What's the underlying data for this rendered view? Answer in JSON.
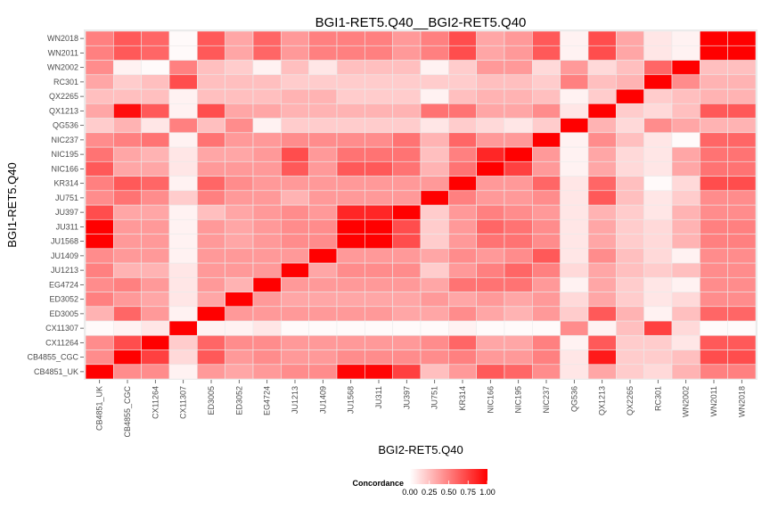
{
  "chart_data": {
    "type": "heatmap",
    "title": "BGI1-RET5.Q40__BGI2-RET5.Q40",
    "xlabel": "BGI2-RET5.Q40",
    "ylabel": "BGI1-RET5.Q40",
    "x_categories": [
      "CB4851_UK",
      "CB4855_CGC",
      "CX11264",
      "CX11307",
      "ED3005",
      "ED3052",
      "EG4724",
      "JU1213",
      "JU1409",
      "JU1568",
      "JU311",
      "JU397",
      "JU751",
      "KR314",
      "NIC166",
      "NIC195",
      "NIC237",
      "QG536",
      "QX1213",
      "QX2265",
      "RC301",
      "WN2002",
      "WN2011",
      "WN2018"
    ],
    "y_categories": [
      "CB4851_UK",
      "CB4855_CGC",
      "CX11264",
      "CX11307",
      "ED3005",
      "ED3052",
      "EG4724",
      "JU1213",
      "JU1409",
      "JU1568",
      "JU311",
      "JU397",
      "JU751",
      "KR314",
      "NIC166",
      "NIC195",
      "NIC237",
      "QG536",
      "QX1213",
      "QX2265",
      "RC301",
      "WN2002",
      "WN2011",
      "WN2018"
    ],
    "values": [
      [
        1.0,
        0.45,
        0.45,
        0.05,
        0.4,
        0.35,
        0.4,
        0.45,
        0.45,
        0.98,
        0.98,
        0.75,
        0.25,
        0.4,
        0.65,
        0.6,
        0.45,
        0.1,
        0.35,
        0.2,
        0.15,
        0.3,
        0.5,
        0.5
      ],
      [
        0.45,
        1.0,
        0.75,
        0.15,
        0.65,
        0.4,
        0.45,
        0.4,
        0.4,
        0.45,
        0.45,
        0.45,
        0.45,
        0.5,
        0.4,
        0.4,
        0.5,
        0.1,
        0.9,
        0.2,
        0.2,
        0.25,
        0.7,
        0.7
      ],
      [
        0.45,
        0.7,
        1.0,
        0.2,
        0.6,
        0.45,
        0.45,
        0.4,
        0.4,
        0.4,
        0.4,
        0.4,
        0.45,
        0.6,
        0.35,
        0.35,
        0.5,
        0.05,
        0.65,
        0.2,
        0.2,
        0.1,
        0.65,
        0.65
      ],
      [
        0.02,
        0.05,
        0.1,
        1.0,
        0.05,
        0.05,
        0.1,
        0.02,
        0.02,
        0.02,
        0.02,
        0.02,
        0.02,
        0.05,
        0.02,
        0.02,
        0.02,
        0.45,
        0.05,
        0.25,
        0.75,
        0.15,
        0.02,
        0.02
      ],
      [
        0.3,
        0.6,
        0.4,
        0.05,
        1.0,
        0.4,
        0.4,
        0.4,
        0.4,
        0.4,
        0.4,
        0.35,
        0.35,
        0.45,
        0.35,
        0.3,
        0.4,
        0.2,
        0.65,
        0.3,
        0.05,
        0.25,
        0.6,
        0.6
      ],
      [
        0.5,
        0.4,
        0.35,
        0.1,
        0.35,
        1.0,
        0.4,
        0.35,
        0.35,
        0.35,
        0.35,
        0.35,
        0.4,
        0.35,
        0.4,
        0.35,
        0.4,
        0.15,
        0.35,
        0.2,
        0.1,
        0.15,
        0.45,
        0.45
      ],
      [
        0.45,
        0.5,
        0.4,
        0.1,
        0.4,
        0.3,
        1.0,
        0.4,
        0.4,
        0.4,
        0.4,
        0.4,
        0.35,
        0.55,
        0.55,
        0.55,
        0.4,
        0.05,
        0.35,
        0.2,
        0.1,
        0.05,
        0.45,
        0.45
      ],
      [
        0.5,
        0.3,
        0.3,
        0.1,
        0.4,
        0.4,
        0.4,
        1.0,
        0.35,
        0.45,
        0.45,
        0.45,
        0.2,
        0.4,
        0.5,
        0.6,
        0.5,
        0.15,
        0.35,
        0.25,
        0.2,
        0.25,
        0.45,
        0.45
      ],
      [
        0.45,
        0.4,
        0.4,
        0.05,
        0.4,
        0.4,
        0.4,
        0.4,
        1.0,
        0.4,
        0.4,
        0.4,
        0.35,
        0.45,
        0.4,
        0.45,
        0.65,
        0.1,
        0.45,
        0.25,
        0.15,
        0.05,
        0.45,
        0.45
      ],
      [
        1.0,
        0.4,
        0.4,
        0.05,
        0.4,
        0.35,
        0.4,
        0.45,
        0.45,
        1.0,
        1.0,
        0.7,
        0.2,
        0.4,
        0.55,
        0.55,
        0.45,
        0.1,
        0.35,
        0.2,
        0.15,
        0.3,
        0.5,
        0.5
      ],
      [
        1.0,
        0.4,
        0.4,
        0.05,
        0.4,
        0.35,
        0.4,
        0.45,
        0.45,
        1.0,
        1.0,
        0.7,
        0.2,
        0.4,
        0.6,
        0.55,
        0.45,
        0.1,
        0.35,
        0.2,
        0.15,
        0.3,
        0.5,
        0.5
      ],
      [
        0.7,
        0.35,
        0.35,
        0.05,
        0.25,
        0.35,
        0.4,
        0.45,
        0.4,
        0.85,
        0.85,
        1.0,
        0.2,
        0.4,
        0.5,
        0.45,
        0.4,
        0.1,
        0.3,
        0.2,
        0.1,
        0.3,
        0.45,
        0.45
      ],
      [
        0.45,
        0.55,
        0.45,
        0.2,
        0.5,
        0.4,
        0.4,
        0.3,
        0.4,
        0.4,
        0.4,
        0.4,
        1.0,
        0.5,
        0.4,
        0.4,
        0.45,
        0.1,
        0.65,
        0.25,
        0.1,
        0.2,
        0.45,
        0.45
      ],
      [
        0.5,
        0.65,
        0.6,
        0.05,
        0.6,
        0.45,
        0.4,
        0.4,
        0.4,
        0.4,
        0.4,
        0.4,
        0.4,
        1.0,
        0.4,
        0.4,
        0.6,
        0.1,
        0.6,
        0.25,
        0.02,
        0.15,
        0.7,
        0.7
      ],
      [
        0.65,
        0.35,
        0.35,
        0.1,
        0.4,
        0.4,
        0.4,
        0.65,
        0.4,
        0.65,
        0.65,
        0.55,
        0.3,
        0.55,
        1.0,
        0.75,
        0.4,
        0.05,
        0.35,
        0.15,
        0.1,
        0.35,
        0.55,
        0.55
      ],
      [
        0.55,
        0.35,
        0.3,
        0.1,
        0.35,
        0.35,
        0.4,
        0.7,
        0.4,
        0.55,
        0.55,
        0.55,
        0.25,
        0.5,
        0.85,
        1.0,
        0.4,
        0.05,
        0.35,
        0.15,
        0.1,
        0.35,
        0.55,
        0.55
      ],
      [
        0.45,
        0.5,
        0.55,
        0.05,
        0.55,
        0.4,
        0.4,
        0.45,
        0.45,
        0.45,
        0.45,
        0.55,
        0.3,
        0.6,
        0.4,
        0.4,
        1.0,
        0.05,
        0.45,
        0.25,
        0.1,
        0.02,
        0.6,
        0.6
      ],
      [
        0.2,
        0.3,
        0.1,
        0.5,
        0.25,
        0.45,
        0.05,
        0.2,
        0.2,
        0.2,
        0.2,
        0.2,
        0.1,
        0.2,
        0.15,
        0.1,
        0.2,
        1.0,
        0.3,
        0.15,
        0.45,
        0.35,
        0.3,
        0.3
      ],
      [
        0.35,
        0.95,
        0.65,
        0.05,
        0.7,
        0.35,
        0.35,
        0.3,
        0.3,
        0.3,
        0.3,
        0.3,
        0.55,
        0.55,
        0.35,
        0.35,
        0.45,
        0.1,
        1.0,
        0.2,
        0.15,
        0.25,
        0.65,
        0.65
      ],
      [
        0.25,
        0.25,
        0.25,
        0.05,
        0.25,
        0.25,
        0.25,
        0.3,
        0.3,
        0.2,
        0.2,
        0.2,
        0.05,
        0.25,
        0.3,
        0.3,
        0.25,
        0.05,
        0.2,
        1.0,
        0.2,
        0.25,
        0.3,
        0.3
      ],
      [
        0.35,
        0.2,
        0.25,
        0.7,
        0.25,
        0.25,
        0.25,
        0.2,
        0.2,
        0.2,
        0.2,
        0.2,
        0.2,
        0.2,
        0.25,
        0.25,
        0.2,
        0.5,
        0.25,
        0.3,
        1.0,
        0.45,
        0.3,
        0.3
      ],
      [
        0.45,
        0.05,
        0.02,
        0.5,
        0.25,
        0.2,
        0.05,
        0.25,
        0.1,
        0.25,
        0.25,
        0.25,
        0.05,
        0.2,
        0.4,
        0.4,
        0.15,
        0.4,
        0.15,
        0.25,
        0.6,
        1.0,
        0.25,
        0.25
      ],
      [
        0.5,
        0.65,
        0.6,
        0.02,
        0.65,
        0.35,
        0.6,
        0.4,
        0.5,
        0.5,
        0.5,
        0.4,
        0.5,
        0.7,
        0.35,
        0.4,
        0.65,
        0.05,
        0.7,
        0.35,
        0.1,
        0.05,
        1.0,
        1.0
      ],
      [
        0.5,
        0.65,
        0.6,
        0.02,
        0.65,
        0.35,
        0.6,
        0.4,
        0.5,
        0.5,
        0.5,
        0.4,
        0.5,
        0.7,
        0.35,
        0.4,
        0.65,
        0.05,
        0.7,
        0.35,
        0.1,
        0.05,
        1.0,
        1.0
      ]
    ],
    "color_scale": {
      "low": "#ffffff",
      "high": "#ff0000",
      "range": [
        0,
        1
      ]
    },
    "legend": {
      "title": "Concordance",
      "placement": "bottom",
      "ticks": [
        "0.00",
        "0.25",
        "0.50",
        "0.75",
        "1.00"
      ]
    },
    "panel_background": "#ebebeb",
    "grid": false
  }
}
